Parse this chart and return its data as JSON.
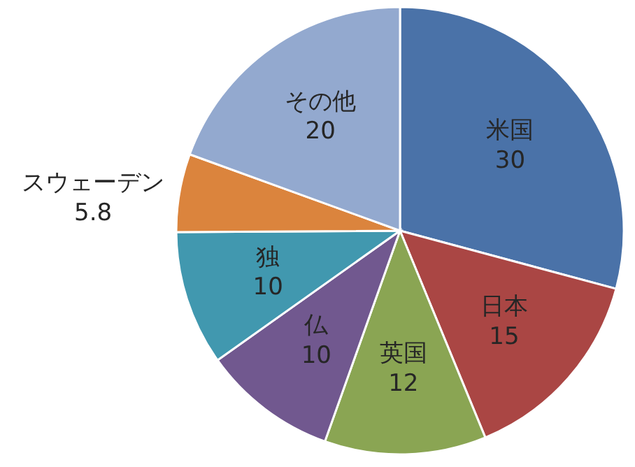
{
  "chart_data": {
    "type": "pie",
    "categories": [
      "米国",
      "日本",
      "英国",
      "仏",
      "独",
      "スウェーデン",
      "その他"
    ],
    "values": [
      30,
      15,
      12,
      10,
      10,
      5.8,
      20
    ],
    "colors": [
      "#4a72a8",
      "#aa4644",
      "#8aa553",
      "#71588f",
      "#4198af",
      "#db843d",
      "#93a9cf"
    ],
    "data_labels": true
  }
}
